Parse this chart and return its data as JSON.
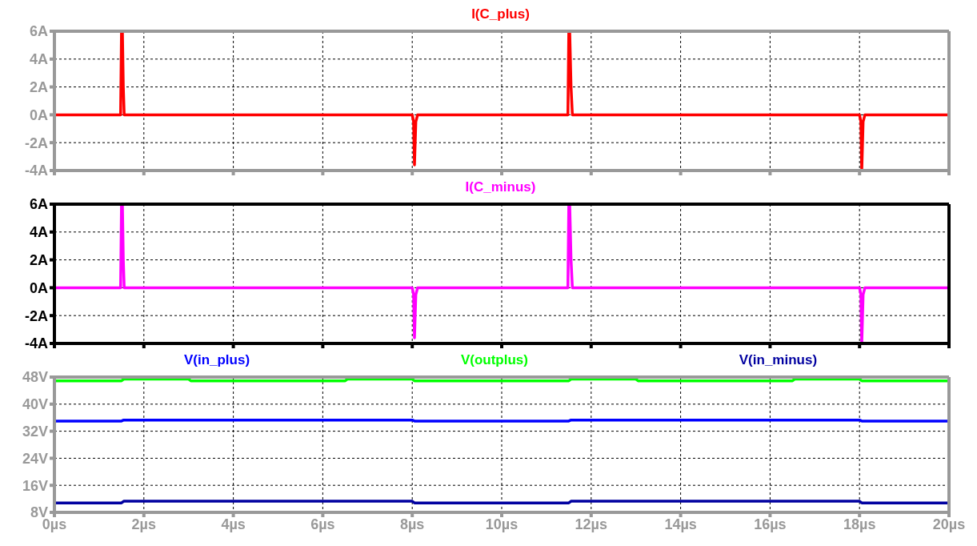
{
  "chart_data": [
    {
      "type": "line",
      "legend": "top",
      "grid": true,
      "tick_labels": "y",
      "xlim": [
        0,
        20
      ],
      "xticks": [
        {
          "value": 0,
          "label": null
        },
        {
          "value": 2,
          "label": null
        },
        {
          "value": 4,
          "label": null
        },
        {
          "value": 6,
          "label": null
        },
        {
          "value": 8,
          "label": null
        },
        {
          "value": 10,
          "label": null
        },
        {
          "value": 12,
          "label": null
        },
        {
          "value": 14,
          "label": null
        },
        {
          "value": 16,
          "label": null
        },
        {
          "value": 18,
          "label": null
        },
        {
          "value": 20,
          "label": null
        }
      ],
      "ylim": [
        -4,
        6
      ],
      "yticks": [
        {
          "value": -4,
          "label": "-4A"
        },
        {
          "value": -2,
          "label": "-2A"
        },
        {
          "value": 0,
          "label": "0A"
        },
        {
          "value": 2,
          "label": "2A"
        },
        {
          "value": 4,
          "label": "4A"
        },
        {
          "value": 6,
          "label": "6A"
        }
      ],
      "series": [
        {
          "name": "I(C_plus)",
          "color": "#ff0000",
          "x": [
            0,
            1.48,
            1.5,
            1.52,
            1.54,
            1.56,
            1.6,
            8.0,
            8.03,
            8.05,
            8.08,
            8.12,
            11.48,
            11.5,
            11.52,
            11.55,
            11.58,
            18.0,
            18.03,
            18.05,
            18.08,
            18.12,
            20
          ],
          "values": [
            0,
            0,
            6,
            6,
            2,
            0,
            0,
            0,
            -0.5,
            -3.6,
            -0.5,
            0,
            0,
            6,
            6,
            2,
            0,
            0,
            -0.5,
            -4,
            -0.5,
            0,
            0
          ]
        }
      ]
    },
    {
      "type": "line",
      "legend": "top",
      "grid": true,
      "tick_labels": "y",
      "xlim": [
        0,
        20
      ],
      "xticks": [
        {
          "value": 0,
          "label": null
        },
        {
          "value": 2,
          "label": null
        },
        {
          "value": 4,
          "label": null
        },
        {
          "value": 6,
          "label": null
        },
        {
          "value": 8,
          "label": null
        },
        {
          "value": 10,
          "label": null
        },
        {
          "value": 12,
          "label": null
        },
        {
          "value": 14,
          "label": null
        },
        {
          "value": 16,
          "label": null
        },
        {
          "value": 18,
          "label": null
        },
        {
          "value": 20,
          "label": null
        }
      ],
      "ylim": [
        -4,
        6
      ],
      "yticks": [
        {
          "value": -4,
          "label": "-4A"
        },
        {
          "value": -2,
          "label": "-2A"
        },
        {
          "value": 0,
          "label": "0A"
        },
        {
          "value": 2,
          "label": "2A"
        },
        {
          "value": 4,
          "label": "4A"
        },
        {
          "value": 6,
          "label": "6A"
        }
      ],
      "series": [
        {
          "name": "I(C_minus)",
          "color": "#ff00ff",
          "x": [
            0,
            1.48,
            1.5,
            1.52,
            1.54,
            1.56,
            1.6,
            8.0,
            8.03,
            8.05,
            8.08,
            8.12,
            11.48,
            11.5,
            11.52,
            11.55,
            11.58,
            18.0,
            18.03,
            18.05,
            18.08,
            18.12,
            20
          ],
          "values": [
            0,
            0,
            6,
            6,
            2,
            0,
            0,
            0,
            -0.5,
            -3.6,
            -0.5,
            0,
            0,
            6,
            6,
            2,
            0,
            0,
            -0.5,
            -4,
            -0.5,
            0,
            0
          ]
        }
      ]
    },
    {
      "type": "line",
      "legend": "top",
      "grid": true,
      "xlim": [
        0,
        20
      ],
      "xticks": [
        {
          "value": 0,
          "label": "0µs"
        },
        {
          "value": 2,
          "label": "2µs"
        },
        {
          "value": 4,
          "label": "4µs"
        },
        {
          "value": 6,
          "label": "6µs"
        },
        {
          "value": 8,
          "label": "8µs"
        },
        {
          "value": 10,
          "label": "10µs"
        },
        {
          "value": 12,
          "label": "12µs"
        },
        {
          "value": 14,
          "label": "14µs"
        },
        {
          "value": 16,
          "label": "16µs"
        },
        {
          "value": 18,
          "label": "18µs"
        },
        {
          "value": 20,
          "label": "20µs"
        }
      ],
      "ylim": [
        8,
        48
      ],
      "yticks": [
        {
          "value": 8,
          "label": "8V"
        },
        {
          "value": 16,
          "label": "16V"
        },
        {
          "value": 24,
          "label": "24V"
        },
        {
          "value": 32,
          "label": "32V"
        },
        {
          "value": 40,
          "label": "40V"
        },
        {
          "value": 48,
          "label": "48V"
        }
      ],
      "series": [
        {
          "name": "V(in_plus)",
          "color": "#0000ff",
          "x": [
            0,
            1.5,
            1.55,
            8.0,
            8.05,
            11.5,
            11.55,
            18.0,
            18.05,
            20
          ],
          "values": [
            35.0,
            35.0,
            35.3,
            35.3,
            35.0,
            35.0,
            35.3,
            35.3,
            35.0,
            35.0
          ]
        },
        {
          "name": "V(outplus)",
          "color": "#00ff00",
          "x": [
            0,
            1.5,
            1.55,
            3.0,
            3.05,
            6.5,
            6.55,
            8.0,
            8.05,
            11.5,
            11.55,
            13.0,
            13.05,
            16.5,
            16.55,
            18.0,
            18.05,
            20
          ],
          "values": [
            46.9,
            46.9,
            47.4,
            47.4,
            46.9,
            46.9,
            47.4,
            47.4,
            46.9,
            46.9,
            47.4,
            47.4,
            46.9,
            46.9,
            47.4,
            47.4,
            46.9,
            46.9
          ]
        },
        {
          "name": "V(in_minus)",
          "color": "#0000a0",
          "x": [
            0,
            1.5,
            1.55,
            8.0,
            8.05,
            11.5,
            11.55,
            18.0,
            18.05,
            20
          ],
          "values": [
            10.8,
            10.8,
            11.3,
            11.3,
            10.8,
            10.8,
            11.3,
            11.3,
            10.8,
            10.8
          ]
        }
      ]
    }
  ]
}
